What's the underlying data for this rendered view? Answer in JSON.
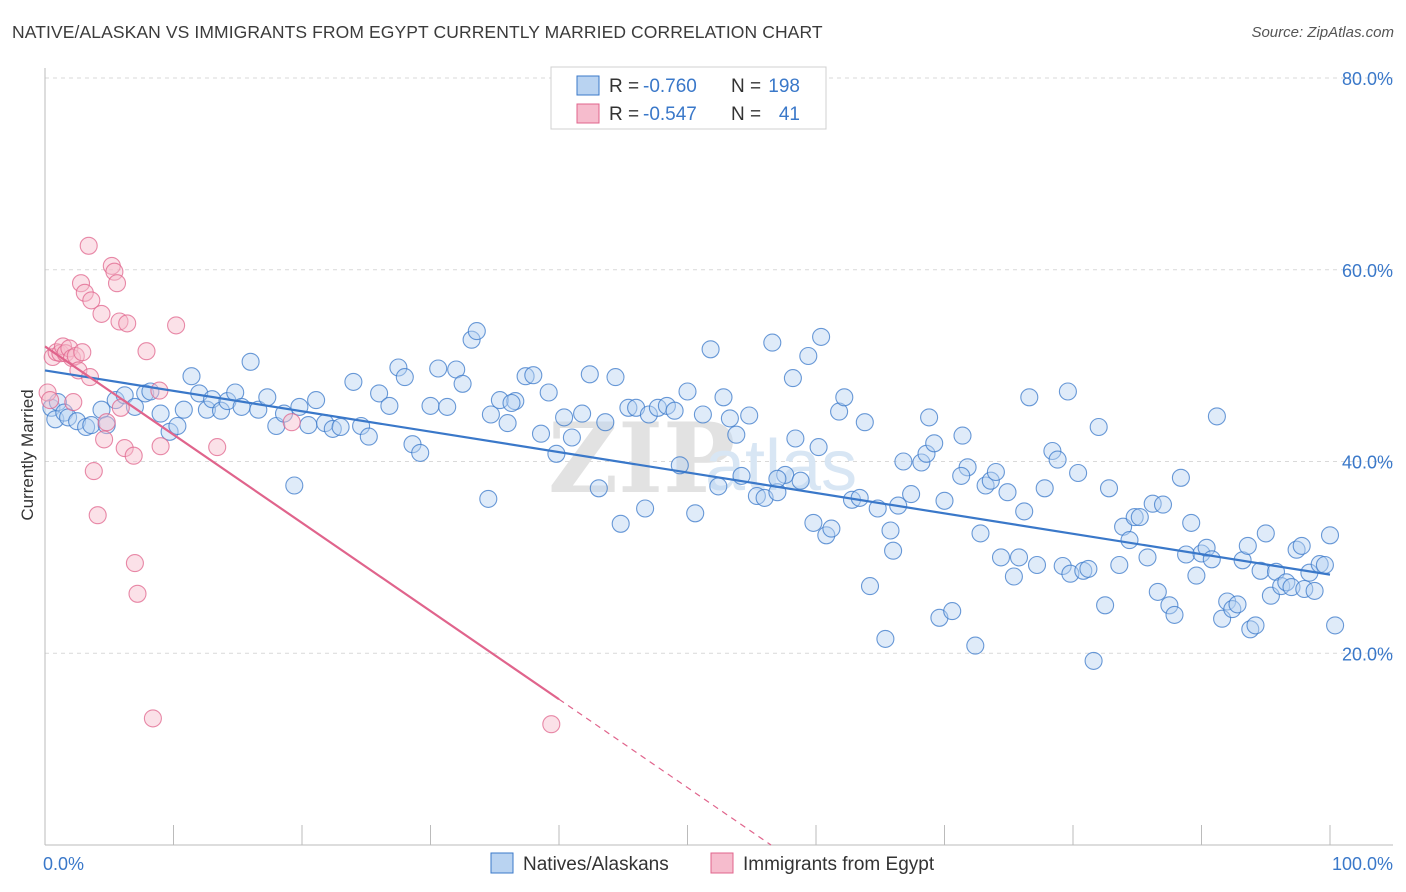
{
  "header": {
    "title": "NATIVE/ALASKAN VS IMMIGRANTS FROM EGYPT CURRENTLY MARRIED CORRELATION CHART",
    "source": "Source: ZipAtlas.com"
  },
  "watermark": {
    "part1": "ZIP",
    "part2": "atlas"
  },
  "colors": {
    "blue": "#3a78c9",
    "blue_fill": "#b9d3f1",
    "pink": "#e0648c",
    "pink_fill": "#f6bccd",
    "grid": "#d9d9d9"
  },
  "stats_legend": [
    {
      "r_label": "R =",
      "r_value": "-0.760",
      "n_label": "N =",
      "n_value": "198"
    },
    {
      "r_label": "R =",
      "r_value": "-0.547",
      "n_label": "N =",
      "n_value": "41"
    }
  ],
  "chart_data": {
    "type": "scatter",
    "title": "NATIVE/ALASKAN VS IMMIGRANTS FROM EGYPT CURRENTLY MARRIED CORRELATION CHART",
    "xlabel": "",
    "ylabel": "Currently Married",
    "xlim": [
      0,
      100
    ],
    "ylim": [
      0,
      80
    ],
    "x_tick_labels": [
      "0.0%",
      "100.0%"
    ],
    "y_ticks": [
      20,
      40,
      60,
      80
    ],
    "y_tick_labels": [
      "20.0%",
      "40.0%",
      "60.0%",
      "80.0%"
    ],
    "grid": true,
    "legend_position": "bottom",
    "series": [
      {
        "name": "Natives/Alaskans",
        "color": "#3a78c9",
        "trend": {
          "x": [
            0,
            100
          ],
          "y": [
            49.5,
            28.2
          ]
        },
        "points": [
          [
            0.5,
            45.6
          ],
          [
            0.8,
            44.4
          ],
          [
            1.0,
            46.2
          ],
          [
            1.5,
            45.1
          ],
          [
            1.8,
            44.6
          ],
          [
            2.5,
            44.2
          ],
          [
            3.2,
            43.6
          ],
          [
            3.6,
            43.8
          ],
          [
            4.4,
            45.4
          ],
          [
            4.8,
            43.8
          ],
          [
            5.5,
            46.4
          ],
          [
            6.2,
            46.9
          ],
          [
            7.0,
            45.7
          ],
          [
            7.8,
            47.1
          ],
          [
            8.2,
            47.3
          ],
          [
            9.0,
            45.0
          ],
          [
            9.7,
            43.1
          ],
          [
            10.3,
            43.7
          ],
          [
            10.8,
            45.4
          ],
          [
            11.4,
            48.9
          ],
          [
            12.0,
            47.1
          ],
          [
            12.6,
            45.4
          ],
          [
            13.0,
            46.5
          ],
          [
            13.7,
            45.3
          ],
          [
            14.2,
            46.3
          ],
          [
            14.8,
            47.2
          ],
          [
            15.3,
            45.7
          ],
          [
            16.0,
            50.4
          ],
          [
            16.6,
            45.4
          ],
          [
            17.3,
            46.7
          ],
          [
            18.0,
            43.7
          ],
          [
            18.6,
            45.0
          ],
          [
            19.4,
            37.5
          ],
          [
            19.8,
            45.7
          ],
          [
            20.5,
            43.8
          ],
          [
            21.1,
            46.4
          ],
          [
            21.8,
            44.0
          ],
          [
            22.4,
            43.4
          ],
          [
            23.0,
            43.6
          ],
          [
            24.0,
            48.3
          ],
          [
            24.6,
            43.7
          ],
          [
            25.2,
            42.6
          ],
          [
            26.0,
            47.1
          ],
          [
            26.8,
            45.8
          ],
          [
            27.5,
            49.8
          ],
          [
            28.0,
            48.8
          ],
          [
            28.6,
            41.8
          ],
          [
            29.2,
            40.9
          ],
          [
            30.0,
            45.8
          ],
          [
            30.6,
            49.7
          ],
          [
            31.3,
            45.7
          ],
          [
            32.0,
            49.6
          ],
          [
            32.5,
            48.1
          ],
          [
            33.2,
            52.7
          ],
          [
            33.6,
            53.6
          ],
          [
            34.5,
            36.1
          ],
          [
            34.7,
            44.9
          ],
          [
            35.4,
            46.4
          ],
          [
            36.0,
            44.0
          ],
          [
            36.6,
            46.3
          ],
          [
            37.4,
            48.9
          ],
          [
            38.0,
            49.0
          ],
          [
            38.6,
            42.9
          ],
          [
            39.2,
            47.2
          ],
          [
            39.8,
            40.8
          ],
          [
            40.4,
            44.6
          ],
          [
            41.0,
            42.5
          ],
          [
            41.8,
            45.0
          ],
          [
            42.4,
            49.1
          ],
          [
            43.1,
            37.2
          ],
          [
            43.6,
            44.1
          ],
          [
            44.4,
            48.8
          ],
          [
            44.8,
            33.5
          ],
          [
            45.4,
            45.6
          ],
          [
            46.0,
            45.6
          ],
          [
            46.7,
            35.1
          ],
          [
            47.0,
            44.9
          ],
          [
            47.7,
            45.6
          ],
          [
            48.4,
            45.8
          ],
          [
            49.0,
            45.3
          ],
          [
            49.4,
            39.6
          ],
          [
            50.0,
            47.3
          ],
          [
            50.6,
            34.6
          ],
          [
            51.2,
            44.9
          ],
          [
            51.8,
            51.7
          ],
          [
            52.4,
            37.4
          ],
          [
            52.8,
            46.7
          ],
          [
            53.3,
            44.5
          ],
          [
            53.8,
            42.8
          ],
          [
            54.2,
            38.5
          ],
          [
            54.8,
            44.8
          ],
          [
            55.4,
            36.4
          ],
          [
            56.0,
            36.2
          ],
          [
            56.6,
            52.4
          ],
          [
            57.0,
            36.8
          ],
          [
            57.6,
            38.6
          ],
          [
            58.2,
            48.7
          ],
          [
            58.8,
            38.0
          ],
          [
            59.4,
            51.0
          ],
          [
            59.8,
            33.6
          ],
          [
            60.4,
            53.0
          ],
          [
            60.8,
            32.3
          ],
          [
            61.2,
            33.0
          ],
          [
            61.8,
            45.2
          ],
          [
            62.2,
            46.7
          ],
          [
            62.8,
            36.0
          ],
          [
            63.4,
            36.2
          ],
          [
            63.8,
            44.1
          ],
          [
            64.2,
            27.0
          ],
          [
            64.8,
            35.1
          ],
          [
            65.4,
            21.5
          ],
          [
            65.8,
            32.8
          ],
          [
            66.4,
            35.4
          ],
          [
            66.8,
            40.0
          ],
          [
            67.4,
            36.6
          ],
          [
            68.2,
            39.9
          ],
          [
            68.6,
            40.8
          ],
          [
            68.8,
            44.6
          ],
          [
            69.2,
            41.9
          ],
          [
            69.6,
            23.7
          ],
          [
            70.0,
            35.9
          ],
          [
            70.6,
            24.4
          ],
          [
            71.4,
            42.7
          ],
          [
            71.8,
            39.4
          ],
          [
            72.4,
            20.8
          ],
          [
            72.8,
            32.5
          ],
          [
            73.2,
            37.5
          ],
          [
            73.6,
            38.0
          ],
          [
            74.0,
            38.9
          ],
          [
            74.4,
            30.0
          ],
          [
            74.9,
            36.8
          ],
          [
            75.4,
            28.0
          ],
          [
            75.8,
            30.0
          ],
          [
            76.2,
            34.8
          ],
          [
            76.6,
            46.7
          ],
          [
            77.2,
            29.2
          ],
          [
            77.8,
            37.2
          ],
          [
            78.4,
            41.1
          ],
          [
            78.8,
            40.2
          ],
          [
            79.2,
            29.1
          ],
          [
            79.6,
            47.3
          ],
          [
            79.8,
            28.3
          ],
          [
            80.4,
            38.8
          ],
          [
            80.8,
            28.6
          ],
          [
            81.2,
            28.8
          ],
          [
            81.6,
            19.2
          ],
          [
            82.0,
            43.6
          ],
          [
            82.5,
            25.0
          ],
          [
            82.8,
            37.2
          ],
          [
            83.6,
            29.2
          ],
          [
            83.9,
            33.2
          ],
          [
            84.4,
            31.8
          ],
          [
            84.8,
            34.2
          ],
          [
            85.2,
            34.2
          ],
          [
            85.8,
            30.0
          ],
          [
            86.2,
            35.6
          ],
          [
            86.6,
            26.4
          ],
          [
            87.0,
            35.5
          ],
          [
            87.5,
            25.0
          ],
          [
            87.9,
            24.0
          ],
          [
            88.4,
            38.3
          ],
          [
            88.8,
            30.3
          ],
          [
            89.2,
            33.6
          ],
          [
            89.6,
            28.1
          ],
          [
            90.0,
            30.4
          ],
          [
            90.4,
            31.0
          ],
          [
            90.8,
            29.8
          ],
          [
            91.2,
            44.7
          ],
          [
            91.6,
            23.6
          ],
          [
            92.0,
            25.4
          ],
          [
            92.4,
            24.6
          ],
          [
            92.8,
            25.1
          ],
          [
            93.2,
            29.7
          ],
          [
            93.6,
            31.2
          ],
          [
            93.8,
            22.5
          ],
          [
            94.2,
            22.9
          ],
          [
            94.6,
            28.6
          ],
          [
            95.0,
            32.5
          ],
          [
            95.4,
            26.0
          ],
          [
            95.8,
            28.5
          ],
          [
            96.2,
            27.0
          ],
          [
            96.6,
            27.4
          ],
          [
            97.0,
            26.9
          ],
          [
            97.4,
            30.8
          ],
          [
            97.8,
            31.2
          ],
          [
            98.0,
            26.7
          ],
          [
            98.4,
            28.4
          ],
          [
            98.8,
            26.5
          ],
          [
            99.2,
            29.3
          ],
          [
            99.6,
            29.2
          ],
          [
            100.0,
            32.3
          ],
          [
            100.4,
            22.9
          ],
          [
            57.0,
            38.2
          ],
          [
            36.3,
            46.1
          ],
          [
            58.4,
            42.4
          ],
          [
            66.0,
            30.7
          ],
          [
            71.3,
            38.5
          ],
          [
            60.2,
            41.5
          ]
        ]
      },
      {
        "name": "Immigrants from Egypt",
        "color": "#e0648c",
        "trend": {
          "x": [
            0,
            40.0
          ],
          "y": [
            52.0,
            15.2
          ]
        },
        "trend_extension": {
          "x": [
            40.0,
            56.5
          ],
          "y": [
            15.2,
            0.0
          ]
        },
        "points": [
          [
            0.2,
            47.2
          ],
          [
            0.4,
            46.4
          ],
          [
            0.6,
            50.9
          ],
          [
            0.9,
            51.4
          ],
          [
            1.2,
            51.3
          ],
          [
            1.4,
            52.0
          ],
          [
            1.6,
            51.3
          ],
          [
            1.9,
            51.8
          ],
          [
            2.1,
            50.8
          ],
          [
            2.2,
            46.2
          ],
          [
            2.4,
            51.0
          ],
          [
            2.6,
            49.5
          ],
          [
            2.8,
            58.6
          ],
          [
            2.9,
            51.4
          ],
          [
            3.1,
            57.6
          ],
          [
            3.4,
            62.5
          ],
          [
            3.5,
            48.8
          ],
          [
            3.6,
            56.8
          ],
          [
            3.8,
            39.0
          ],
          [
            4.1,
            34.4
          ],
          [
            4.4,
            55.4
          ],
          [
            4.6,
            42.3
          ],
          [
            4.8,
            44.1
          ],
          [
            5.2,
            60.4
          ],
          [
            5.4,
            59.8
          ],
          [
            5.6,
            58.6
          ],
          [
            5.8,
            54.6
          ],
          [
            5.9,
            45.6
          ],
          [
            6.2,
            41.4
          ],
          [
            6.4,
            54.4
          ],
          [
            6.9,
            40.6
          ],
          [
            7.0,
            29.4
          ],
          [
            7.2,
            26.2
          ],
          [
            7.9,
            51.5
          ],
          [
            8.4,
            13.2
          ],
          [
            8.9,
            47.4
          ],
          [
            9.0,
            41.6
          ],
          [
            10.2,
            54.2
          ],
          [
            13.4,
            41.5
          ],
          [
            19.2,
            44.1
          ],
          [
            39.4,
            12.6
          ]
        ]
      }
    ]
  }
}
